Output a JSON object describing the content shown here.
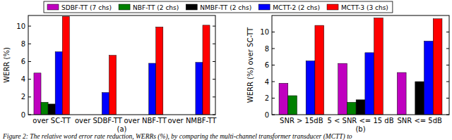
{
  "chart_data": [
    {
      "type": "bar",
      "title": "(a)",
      "y_label": "WERR (%)",
      "categories": [
        "over SC-TT",
        "over SDBF-TT",
        "over NBF-TT",
        "over NMBF-TT"
      ],
      "series": [
        {
          "name": "SDBF-TT (7 chs)",
          "color": "#bf00bf",
          "values": [
            4.7,
            null,
            null,
            null
          ]
        },
        {
          "name": "NBF-TT (2 chs)",
          "color": "#008000",
          "values": [
            1.4,
            null,
            null,
            null
          ]
        },
        {
          "name": "NMBF-TT (2 chs)",
          "color": "#000000",
          "values": [
            1.2,
            null,
            null,
            null
          ]
        },
        {
          "name": "MCTT-2 (2 chs)",
          "color": "#0000ff",
          "values": [
            7.1,
            2.5,
            5.8,
            5.9
          ]
        },
        {
          "name": "MCTT-3 (3 chs)",
          "color": "#ff0000",
          "values": [
            11.1,
            6.7,
            9.9,
            10.1
          ]
        }
      ],
      "ylim": [
        0,
        11.2
      ],
      "yticks": [
        0,
        2,
        4,
        6,
        8,
        10
      ],
      "grid": false,
      "legend": "top"
    },
    {
      "type": "bar",
      "title": "(b)",
      "y_label": "WERR (%) over SC-TT",
      "categories": [
        "SNR > 15dB",
        "5 < SNR <= 15 dB",
        "SNR <= 5dB"
      ],
      "series": [
        {
          "color": "#bf00bf",
          "values": [
            3.8,
            6.2,
            5.1
          ]
        },
        {
          "color": "#008000",
          "values": [
            2.3,
            1.5,
            null
          ]
        },
        {
          "color": "#000000",
          "values": [
            null,
            1.8,
            4.0
          ]
        },
        {
          "color": "#0000ff",
          "values": [
            6.5,
            7.5,
            8.9
          ]
        },
        {
          "color": "#ff0000",
          "values": [
            10.8,
            11.7,
            11.6
          ]
        }
      ],
      "ylim": [
        0,
        12
      ],
      "yticks": [
        0,
        2,
        4,
        6,
        8,
        10
      ],
      "grid": false
    }
  ],
  "caption": "Figure 2: The relative word error rate reduction, WERRs (%), by comparing the multi-channel transformer transducer (MCTT) to"
}
